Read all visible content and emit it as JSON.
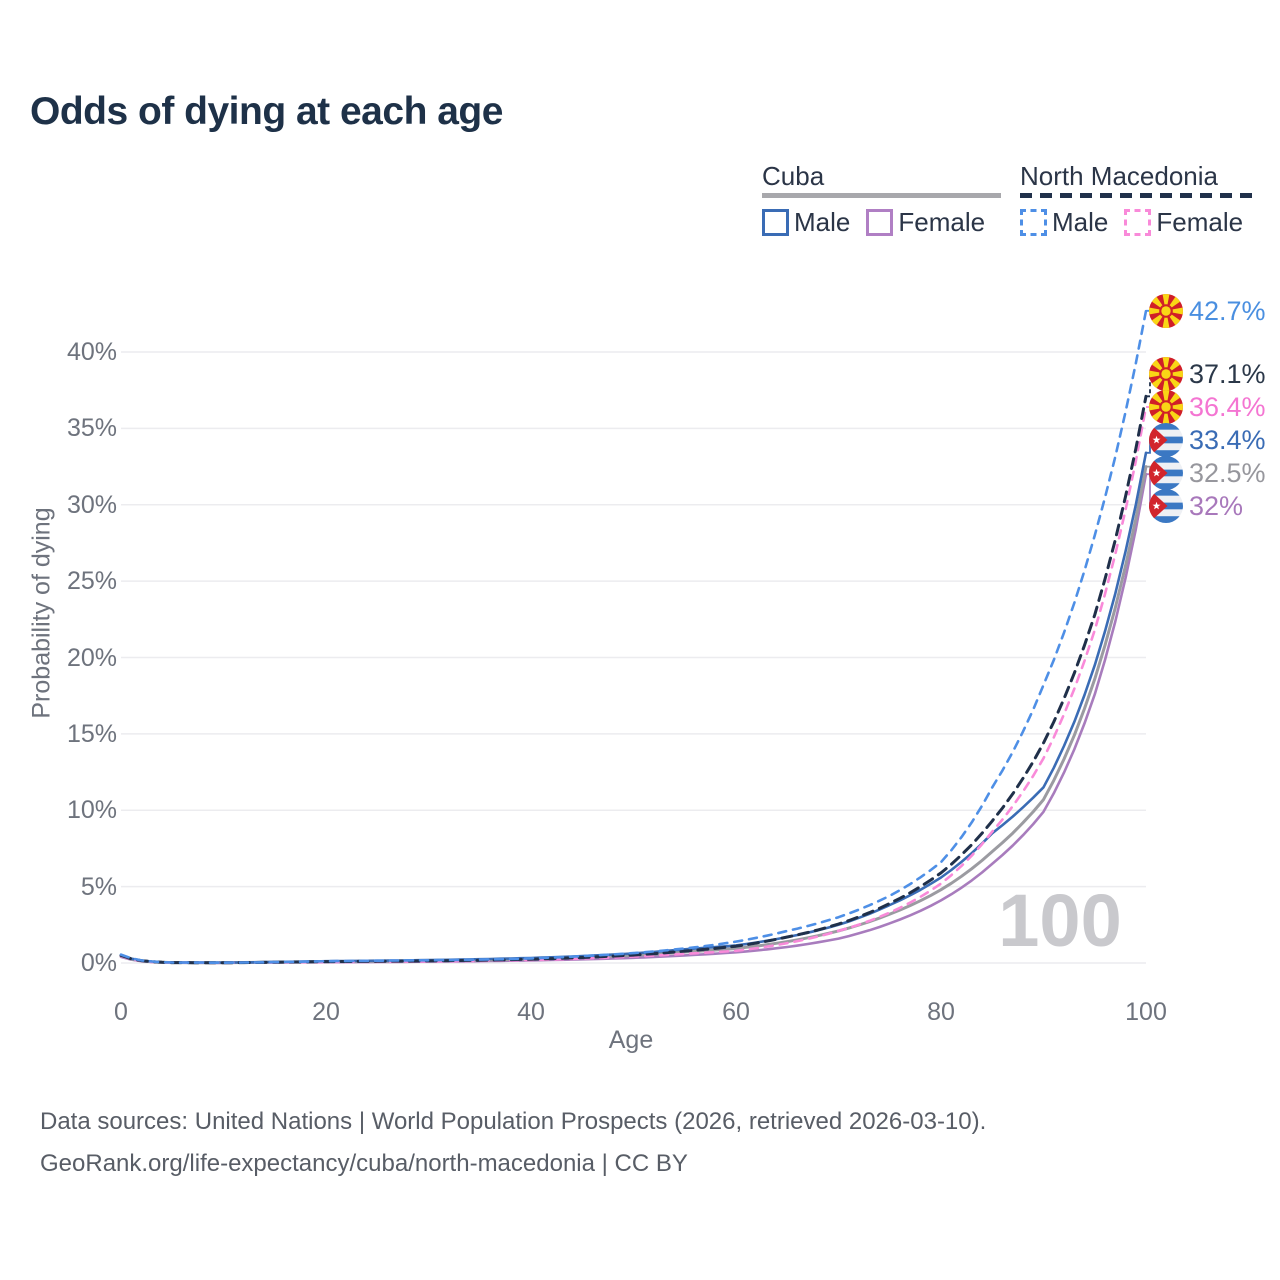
{
  "title": "Odds of dying at each age",
  "legend": {
    "groups": [
      {
        "label": "Cuba",
        "line_style": "solid",
        "underline_color": "#a8a8ac",
        "items": [
          {
            "label": "Male",
            "color": "#3a6cb5",
            "dashed": false
          },
          {
            "label": "Female",
            "color": "#b07fc4",
            "dashed": false
          }
        ]
      },
      {
        "label": "North Macedonia",
        "line_style": "dashed",
        "underline_color": "#20304a",
        "items": [
          {
            "label": "Male",
            "color": "#4e8fe6",
            "dashed": true
          },
          {
            "label": "Female",
            "color": "#f98ad9",
            "dashed": true
          }
        ]
      }
    ]
  },
  "chart_data": {
    "type": "line",
    "title": "Odds of dying at each age",
    "xlabel": "Age",
    "ylabel": "Probability of dying",
    "xlim": [
      0,
      100
    ],
    "ylim_percent": [
      0,
      43
    ],
    "grid": "horizontal",
    "age_cursor": "100",
    "x_ticks": [
      0,
      20,
      40,
      60,
      80,
      100
    ],
    "y_ticks": {
      "values": [
        0,
        5,
        10,
        15,
        20,
        25,
        30,
        35,
        40
      ],
      "labels": [
        "0%",
        "5%",
        "10%",
        "15%",
        "20%",
        "25%",
        "30%",
        "35%",
        "40%"
      ]
    },
    "x": [
      0,
      5,
      10,
      15,
      20,
      25,
      30,
      35,
      40,
      45,
      50,
      55,
      60,
      65,
      70,
      75,
      80,
      85,
      90,
      95,
      100
    ],
    "series": [
      {
        "name": "North Macedonia Male",
        "country": "North Macedonia",
        "sex": "Male",
        "flag": "north-macedonia",
        "color": "#4e8fe6",
        "dash": true,
        "end_label": "42.7%",
        "end_label_color": "#4a8fe0",
        "values": [
          0.55,
          0.03,
          0.02,
          0.06,
          0.12,
          0.15,
          0.18,
          0.22,
          0.3,
          0.45,
          0.65,
          0.95,
          1.4,
          2.1,
          3.0,
          4.4,
          6.6,
          11.5,
          18.2,
          28.0,
          42.7
        ]
      },
      {
        "name": "North Macedonia Both sexes",
        "country": "North Macedonia",
        "sex": "Both",
        "flag": "north-macedonia",
        "color": "#20304a",
        "dash": true,
        "end_label": "37.1%",
        "end_label_color": "#2b3849",
        "values": [
          0.5,
          0.025,
          0.018,
          0.05,
          0.09,
          0.11,
          0.14,
          0.18,
          0.25,
          0.36,
          0.52,
          0.78,
          1.1,
          1.7,
          2.55,
          3.9,
          5.9,
          9.3,
          14.4,
          22.8,
          37.1
        ]
      },
      {
        "name": "North Macedonia Female",
        "country": "North Macedonia",
        "sex": "Female",
        "flag": "north-macedonia",
        "color": "#f98ad9",
        "dash": true,
        "end_label": "36.4%",
        "end_label_color": "#f475d2",
        "values": [
          0.45,
          0.02,
          0.015,
          0.04,
          0.06,
          0.08,
          0.1,
          0.14,
          0.2,
          0.29,
          0.42,
          0.6,
          0.8,
          1.3,
          2.1,
          3.3,
          5.2,
          8.6,
          13.4,
          21.8,
          36.4
        ]
      },
      {
        "name": "Cuba Male",
        "country": "Cuba",
        "sex": "Male",
        "flag": "cuba",
        "color": "#3a6cb5",
        "dash": false,
        "end_label": "33.4%",
        "end_label_color": "#3a6cb5",
        "values": [
          0.5,
          0.03,
          0.025,
          0.07,
          0.12,
          0.15,
          0.19,
          0.25,
          0.33,
          0.45,
          0.63,
          0.9,
          1.15,
          1.7,
          2.5,
          3.8,
          5.6,
          8.5,
          11.5,
          19.5,
          33.4
        ]
      },
      {
        "name": "Cuba Both sexes",
        "country": "Cuba",
        "sex": "Both",
        "flag": "cuba",
        "color": "#9b9ba1",
        "dash": false,
        "end_label": "32.5%",
        "end_label_color": "#97979d",
        "values": [
          0.45,
          0.025,
          0.02,
          0.055,
          0.09,
          0.11,
          0.14,
          0.19,
          0.26,
          0.36,
          0.5,
          0.72,
          0.95,
          1.4,
          2.1,
          3.2,
          4.8,
          7.3,
          10.7,
          18.6,
          32.5
        ]
      },
      {
        "name": "Cuba Female",
        "country": "Cuba",
        "sex": "Female",
        "flag": "cuba",
        "color": "#a87cbd",
        "dash": false,
        "end_label": "32%",
        "end_label_color": "#a878bb",
        "values": [
          0.4,
          0.02,
          0.015,
          0.04,
          0.05,
          0.065,
          0.09,
          0.12,
          0.17,
          0.24,
          0.34,
          0.5,
          0.7,
          1.05,
          1.6,
          2.6,
          4.1,
          6.5,
          9.9,
          17.6,
          32.0
        ]
      }
    ]
  },
  "footer": {
    "line1": "Data sources: United Nations | World Population Prospects (2026, retrieved 2026-03-10).",
    "line2": "GeoRank.org/life-expectancy/cuba/north-macedonia | CC BY"
  }
}
